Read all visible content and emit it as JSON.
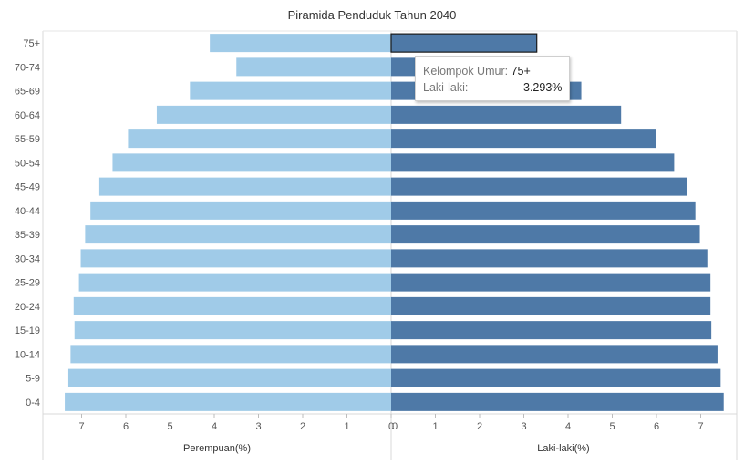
{
  "chart_data": {
    "type": "bar",
    "title": "Piramida Penduduk Tahun 2040",
    "categories": [
      "75+",
      "70-74",
      "65-69",
      "60-64",
      "55-59",
      "50-54",
      "45-49",
      "40-44",
      "35-39",
      "30-34",
      "25-29",
      "20-24",
      "15-19",
      "10-14",
      "5-9",
      "0-4"
    ],
    "series": [
      {
        "name": "Perempuan(%)",
        "values": [
          4.1,
          3.5,
          4.55,
          5.3,
          5.95,
          6.3,
          6.6,
          6.8,
          6.92,
          7.02,
          7.06,
          7.18,
          7.16,
          7.25,
          7.3,
          7.38
        ]
      },
      {
        "name": "Laki-laki(%)",
        "values": [
          3.293,
          1.9,
          4.3,
          5.2,
          5.98,
          6.4,
          6.7,
          6.88,
          6.98,
          7.15,
          7.22,
          7.22,
          7.24,
          7.38,
          7.45,
          7.52
        ]
      }
    ],
    "left_axis": {
      "label": "Perempuan(%)",
      "ticks": [
        7,
        6,
        5,
        4,
        3,
        2,
        1,
        0
      ],
      "range": [
        8,
        0
      ]
    },
    "right_axis": {
      "label": "Laki-laki(%)",
      "ticks": [
        0,
        1,
        2,
        3,
        4,
        5,
        6,
        7
      ],
      "range": [
        0,
        8
      ]
    },
    "colors": {
      "left": "#a0cbe8",
      "right": "#4e79a7"
    },
    "highlighted_category": "75+"
  },
  "tooltip": {
    "group_label": "Kelompok Umur:",
    "group_value": "75+",
    "series_label": "Laki-laki:",
    "series_value": "3.293%"
  }
}
